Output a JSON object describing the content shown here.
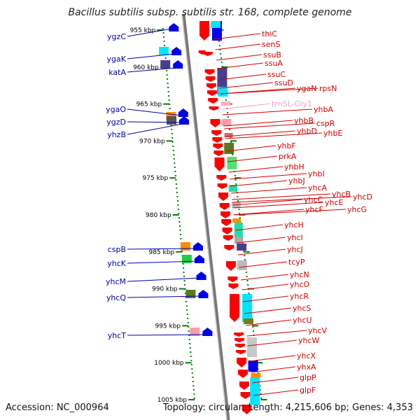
{
  "title": "Bacillus subtilis subsp. subtilis str. 168, complete genome",
  "accession": "Accession: NC_000964",
  "topology": "Topology: circular; Length: 4,215,606 bp; Genes: 4,353",
  "colors": {
    "forward_gene": "#ff0000",
    "left_label": "#0000b0",
    "right_label": "#d40000",
    "trna_label": "#f0a0d0",
    "tick": "#008000",
    "genome_line": "#777777"
  },
  "ticks": [
    "955 kbp",
    "960 kbp",
    "965 kbp",
    "970 kbp",
    "975 kbp",
    "980 kbp",
    "985 kbp",
    "990 kbp",
    "995 kbp",
    "1000 kbp",
    "1005 kbp"
  ],
  "left_labels": [
    "ygzC",
    "ygaK",
    "katA",
    "ygaO",
    "ygzD",
    "yhzB",
    "cspB",
    "yhcK",
    "yhcM",
    "yhcQ",
    "yhcT"
  ],
  "right_labels": [
    "thiC",
    "senS",
    "ssuB",
    "ssuA",
    "ssuC",
    "ssuD",
    "ygaN",
    "rpsN",
    "trnSL-Gly1",
    "yhbA",
    "yhbB",
    "cspR",
    "yhbD",
    "yhbE",
    "yhbF",
    "prkA",
    "yhbH",
    "yhbI",
    "yhbJ",
    "yhcA",
    "yhcB",
    "yhcC",
    "yhcD",
    "yhcE",
    "yhcF",
    "yhcG",
    "yhcH",
    "yhcI",
    "yhcJ",
    "tcyP",
    "yhcN",
    "yhcO",
    "yhcR",
    "yhcS",
    "yhcU",
    "yhcV",
    "yhcW",
    "yhcX",
    "yhxA",
    "glpP",
    "glpF"
  ]
}
